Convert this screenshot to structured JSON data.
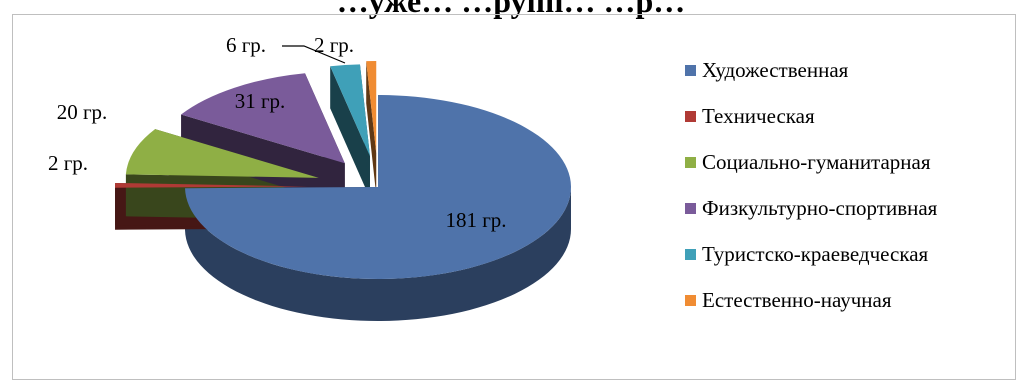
{
  "title": "…уже…  …рупп… …р…",
  "chart_data": {
    "type": "pie",
    "title": "",
    "categories": [
      "Художественная",
      "Техническая",
      "Социально-гуманитарная",
      "Физкультурно-спортивная",
      "Туристско-краеведческая",
      "Естественно-научная"
    ],
    "values": [
      181,
      2,
      20,
      31,
      6,
      2
    ],
    "data_labels": [
      "181 гр.",
      "2 гр.",
      "20 гр.",
      "31 гр.",
      "6 гр.",
      "2 гр."
    ],
    "colors": [
      "#4F73AA",
      "#B03A35",
      "#8FAF45",
      "#7A5B9A",
      "#3FA0B8",
      "#F08C33"
    ],
    "exploded": true,
    "three_d": true,
    "legend_position": "right"
  }
}
